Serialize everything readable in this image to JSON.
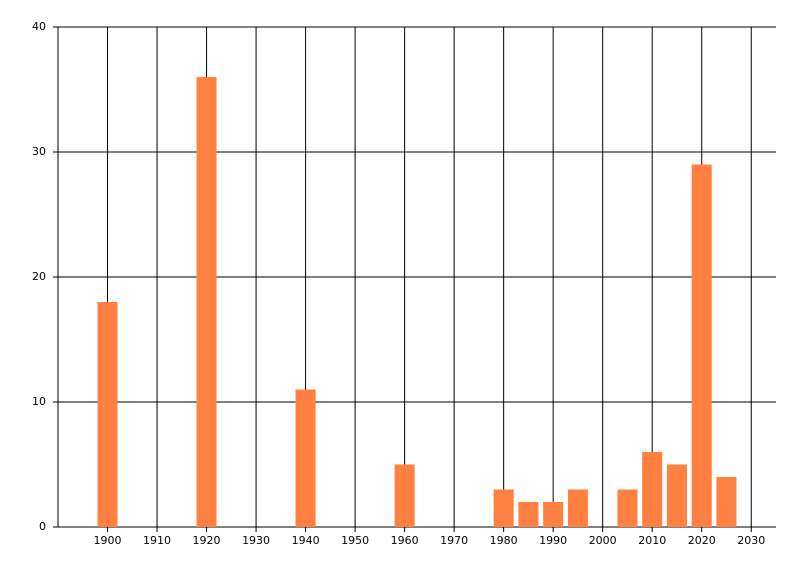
{
  "chart_data": {
    "type": "bar",
    "x": [
      1900,
      1920,
      1940,
      1960,
      1980,
      1985,
      1990,
      1995,
      2005,
      2010,
      2015,
      2020,
      2025
    ],
    "values": [
      18,
      36,
      11,
      5,
      3,
      2,
      2,
      3,
      3,
      6,
      5,
      29,
      4
    ],
    "color": "#ff8040",
    "xlim": [
      1890,
      2035
    ],
    "xticks": [
      1900,
      1910,
      1920,
      1930,
      1940,
      1950,
      1960,
      1970,
      1980,
      1990,
      2000,
      2010,
      2020,
      2030
    ],
    "ylim": [
      0,
      40
    ],
    "yticks": [
      0,
      10,
      20,
      30,
      40
    ],
    "grid": true
  }
}
